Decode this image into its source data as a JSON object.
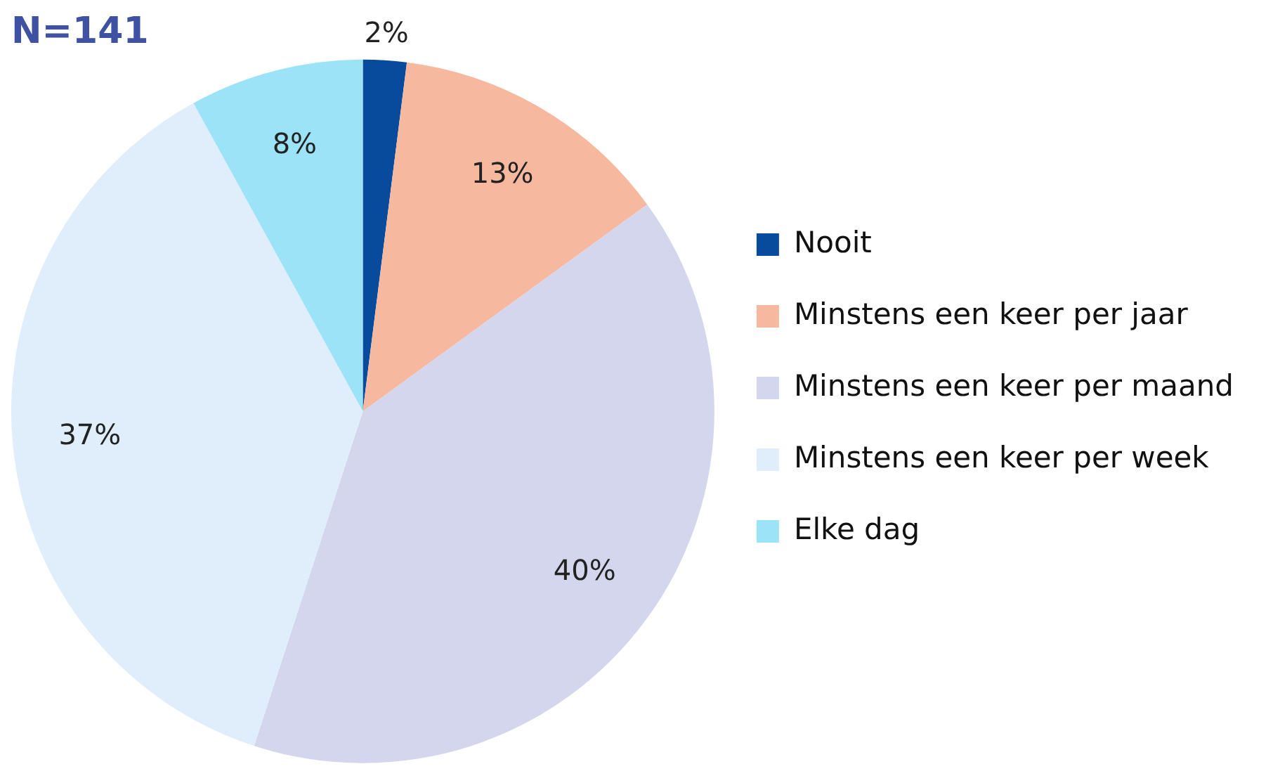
{
  "chart_data": {
    "type": "pie",
    "title": "N=141",
    "categories": [
      "Nooit",
      "Minstens een keer per jaar",
      "Minstens een keer per maand",
      "Minstens een keer per week",
      "Elke dag"
    ],
    "values": [
      2,
      13,
      40,
      37,
      8
    ],
    "colors": [
      "#084b9c",
      "#f6b9a0",
      "#d3d6ec",
      "#dfeefa",
      "#9ce3f7"
    ],
    "value_labels": [
      "2%",
      "13%",
      "40%",
      "37%",
      "8%"
    ],
    "legend": "right"
  }
}
